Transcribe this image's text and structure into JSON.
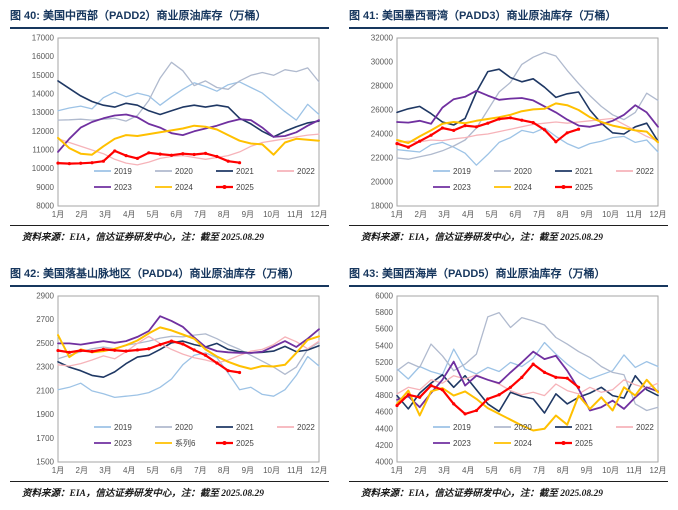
{
  "x_labels": [
    "1月",
    "2月",
    "3月",
    "4月",
    "5月",
    "6月",
    "7月",
    "8月",
    "9月",
    "10月",
    "11月",
    "12月"
  ],
  "palette": {
    "y2019": "#9DC3E6",
    "y2020": "#B0BACE",
    "y2021": "#1F3864",
    "y2022": "#F6B3B9",
    "y2023": "#7030A0",
    "y2024": "#FFC000",
    "y2025": "#FF0000",
    "title_navy": "#17375E",
    "axis_text": "#595959",
    "plot_border": "#A6A6A6"
  },
  "chart_data": [
    {
      "type": "line",
      "id": "padd2",
      "title": "图 40: 美国中西部（PADD2）商业原油库存（万桶）",
      "source": "资料来源：EIA，信达证券研发中心，注：截至 2025.08.29",
      "ylim": [
        8000,
        17000
      ],
      "ystep": 1000,
      "points_per_year": 24,
      "grid": false,
      "legend_position": "bottom-inside",
      "legend_rows": [
        [
          "2019",
          "2020",
          "2021",
          "2022"
        ],
        [
          "2023",
          "2024",
          "2025"
        ]
      ],
      "series": [
        {
          "name": "2019",
          "color": "#9DC3E6",
          "values": [
            13100,
            13250,
            13350,
            13200,
            13800,
            14100,
            13850,
            14050,
            13900,
            13400,
            13850,
            14250,
            14600,
            14400,
            14150,
            14500,
            14650,
            14350,
            14050,
            13550,
            13050,
            12600,
            13450,
            12900
          ]
        },
        {
          "name": "2020",
          "color": "#B0BACE",
          "values": [
            12600,
            12620,
            12650,
            12600,
            12650,
            12700,
            12550,
            12850,
            13650,
            14850,
            15700,
            15250,
            14450,
            14700,
            14350,
            14250,
            14700,
            15000,
            15150,
            15000,
            15300,
            15200,
            15400,
            14650
          ]
        },
        {
          "name": "2021",
          "color": "#1F3864",
          "values": [
            14700,
            14300,
            13900,
            13600,
            13400,
            13300,
            13500,
            13400,
            13100,
            12900,
            13100,
            13300,
            13400,
            13300,
            13400,
            13300,
            12700,
            12400,
            12000,
            11700,
            12000,
            12250,
            12450,
            12550
          ]
        },
        {
          "name": "2022",
          "color": "#F6B3B9",
          "values": [
            11600,
            11400,
            11200,
            11000,
            10800,
            10500,
            10300,
            10200,
            10350,
            10550,
            10650,
            10700,
            10600,
            10500,
            10600,
            10700,
            10900,
            11200,
            11400,
            11500,
            11600,
            11700,
            11800,
            11850
          ]
        },
        {
          "name": "2023",
          "color": "#7030A0",
          "values": [
            10900,
            11600,
            12200,
            12500,
            12700,
            12850,
            12900,
            12750,
            12400,
            12200,
            11900,
            11800,
            12000,
            12150,
            12300,
            12500,
            12650,
            12600,
            12200,
            11700,
            11750,
            11950,
            12300,
            12600
          ]
        },
        {
          "name": "2024",
          "color": "#FFC000",
          "values": [
            11650,
            11100,
            10800,
            10750,
            11200,
            11600,
            11800,
            11750,
            11850,
            11950,
            12050,
            12150,
            12300,
            12250,
            12100,
            11800,
            11500,
            11350,
            11300,
            10750,
            11400,
            11600,
            11550,
            11500
          ]
        },
        {
          "name": "2025",
          "color": "#FF0000",
          "marker": true,
          "values": [
            10300,
            10270,
            10290,
            10320,
            10400,
            10950,
            10700,
            10550,
            10850,
            10780,
            10720,
            10800,
            10760,
            10820,
            10650,
            10400,
            10320
          ]
        }
      ]
    },
    {
      "type": "line",
      "id": "padd3",
      "title": "图 41: 美国墨西哥湾（PADD3）商业原油库存（万桶）",
      "source": "资料来源：EIA，信达证券研发中心，注：截至 2025.08.29",
      "ylim": [
        18000,
        32000
      ],
      "ystep": 2000,
      "points_per_year": 24,
      "grid": false,
      "legend_position": "bottom-inside",
      "legend_rows": [
        [
          "2019",
          "2020",
          "2021",
          "2022"
        ],
        [
          "2023",
          "2024",
          "2025"
        ]
      ],
      "series": [
        {
          "name": "2019",
          "color": "#9DC3E6",
          "values": [
            22700,
            22600,
            22500,
            23100,
            23300,
            22900,
            22400,
            21400,
            22300,
            23300,
            23700,
            24300,
            24100,
            24500,
            23800,
            23200,
            22800,
            23200,
            23400,
            23700,
            23800,
            23300,
            23500,
            22500
          ]
        },
        {
          "name": "2020",
          "color": "#B0BACE",
          "values": [
            22000,
            21900,
            22100,
            22300,
            22600,
            23000,
            23500,
            24500,
            26000,
            27500,
            28300,
            29800,
            30400,
            30800,
            30500,
            29300,
            28200,
            27200,
            26300,
            25600,
            25200,
            25800,
            27400,
            26800
          ]
        },
        {
          "name": "2021",
          "color": "#1F3864",
          "values": [
            25800,
            26100,
            26300,
            25700,
            25000,
            24750,
            25300,
            27500,
            29200,
            29400,
            28700,
            28350,
            28600,
            27900,
            27050,
            27350,
            27500,
            26000,
            24900,
            24100,
            24000,
            24600,
            24900,
            23400
          ]
        },
        {
          "name": "2022",
          "color": "#F6B3B9",
          "values": [
            23300,
            23400,
            23350,
            23500,
            23450,
            23600,
            23700,
            23900,
            24000,
            24200,
            24400,
            24600,
            24800,
            24900,
            25000,
            24900,
            25000,
            25100,
            25200,
            25300,
            24800,
            24300,
            23800,
            23400
          ]
        },
        {
          "name": "2023",
          "color": "#7030A0",
          "values": [
            25000,
            24950,
            25100,
            24850,
            26200,
            26900,
            27100,
            27600,
            27200,
            26850,
            26950,
            27000,
            26800,
            26300,
            25800,
            25200,
            24700,
            24600,
            24800,
            25100,
            25600,
            26400,
            25800,
            24600
          ]
        },
        {
          "name": "2024",
          "color": "#FFC000",
          "values": [
            23500,
            23250,
            23800,
            24300,
            24850,
            25000,
            24900,
            25100,
            25250,
            25400,
            25600,
            25900,
            26050,
            26100,
            26550,
            26400,
            26000,
            25400,
            25000,
            24700,
            24500,
            24300,
            24200,
            23300
          ]
        },
        {
          "name": "2025",
          "color": "#FF0000",
          "marker": true,
          "values": [
            23200,
            22900,
            23400,
            23900,
            24500,
            24300,
            24700,
            24600,
            24900,
            25250,
            25350,
            25150,
            24950,
            24350,
            23350,
            24100,
            24400
          ]
        }
      ]
    },
    {
      "type": "line",
      "id": "padd4",
      "title": "图 42: 美国落基山脉地区（PADD4）商业原油库存（万桶）",
      "source": "资料来源：EIA，信达证券研发中心，注：截至 2025.08.29",
      "ylim": [
        1500,
        2900
      ],
      "ystep": 200,
      "points_per_year": 24,
      "grid": false,
      "legend_position": "bottom-inside",
      "legend_rows": [
        [
          "2019",
          "2020",
          "2021",
          "2022"
        ],
        [
          "2023",
          "系列6",
          "2025"
        ]
      ],
      "series": [
        {
          "name": "2019",
          "color": "#9DC3E6",
          "values": [
            2110,
            2130,
            2165,
            2100,
            2075,
            2045,
            2055,
            2065,
            2085,
            2130,
            2200,
            2320,
            2400,
            2420,
            2380,
            2250,
            2110,
            2130,
            2070,
            2055,
            2110,
            2230,
            2390,
            2310
          ]
        },
        {
          "name": "2020",
          "color": "#B0BACE",
          "values": [
            2370,
            2400,
            2430,
            2455,
            2470,
            2455,
            2485,
            2500,
            2520,
            2545,
            2560,
            2555,
            2570,
            2580,
            2540,
            2490,
            2450,
            2400,
            2350,
            2300,
            2240,
            2300,
            2450,
            2510
          ]
        },
        {
          "name": "2021",
          "color": "#1F3864",
          "values": [
            2345,
            2300,
            2270,
            2230,
            2215,
            2260,
            2330,
            2385,
            2400,
            2450,
            2505,
            2520,
            2490,
            2470,
            2500,
            2450,
            2430,
            2420,
            2425,
            2435,
            2475,
            2430,
            2445,
            2480
          ]
        },
        {
          "name": "2022",
          "color": "#F6B3B9",
          "values": [
            2320,
            2310,
            2330,
            2360,
            2395,
            2370,
            2430,
            2500,
            2560,
            2500,
            2450,
            2410,
            2380,
            2360,
            2335,
            2360,
            2400,
            2435,
            2450,
            2490,
            2555,
            2515,
            2455,
            2520
          ]
        },
        {
          "name": "2023",
          "color": "#7030A0",
          "values": [
            2500,
            2500,
            2490,
            2505,
            2520,
            2505,
            2520,
            2555,
            2605,
            2730,
            2690,
            2640,
            2550,
            2470,
            2435,
            2425,
            2420,
            2420,
            2430,
            2475,
            2520,
            2470,
            2540,
            2620
          ]
        },
        {
          "name": "系列6",
          "color": "#FFC000",
          "values": [
            2570,
            2385,
            2450,
            2425,
            2435,
            2455,
            2485,
            2525,
            2585,
            2635,
            2610,
            2575,
            2540,
            2450,
            2390,
            2345,
            2310,
            2285,
            2310,
            2305,
            2320,
            2420,
            2530,
            2560
          ]
        },
        {
          "name": "2025",
          "color": "#FF0000",
          "marker": true,
          "values": [
            2440,
            2425,
            2440,
            2432,
            2450,
            2442,
            2435,
            2445,
            2455,
            2490,
            2520,
            2495,
            2445,
            2400,
            2335,
            2270,
            2255
          ]
        }
      ]
    },
    {
      "type": "line",
      "id": "padd5",
      "title": "图 43: 美国西海岸（PADD5）商业原油库存（万桶）",
      "source": "资料来源：EIA，信达证券研发中心，注：截至 2025.08.29",
      "ylim": [
        4000,
        6000
      ],
      "ystep": 200,
      "points_per_year": 24,
      "grid": false,
      "legend_position": "bottom-inside",
      "legend_rows": [
        [
          "2019",
          "2020",
          "2021",
          "2022"
        ],
        [
          "2023",
          "2024",
          "2025"
        ]
      ],
      "series": [
        {
          "name": "2019",
          "color": "#9DC3E6",
          "values": [
            5120,
            5000,
            5150,
            5090,
            5050,
            5360,
            5120,
            5060,
            5140,
            5090,
            5200,
            5150,
            5250,
            5440,
            5300,
            5180,
            5080,
            5000,
            5050,
            5100,
            5290,
            5140,
            5210,
            5150
          ]
        },
        {
          "name": "2020",
          "color": "#B0BACE",
          "values": [
            5100,
            5200,
            5140,
            5420,
            5280,
            5100,
            5180,
            5300,
            5750,
            5800,
            5620,
            5740,
            5700,
            5650,
            5500,
            5420,
            5330,
            5260,
            5150,
            5080,
            5050,
            4700,
            4620,
            4660
          ]
        },
        {
          "name": "2021",
          "color": "#1F3864",
          "values": [
            4800,
            4640,
            4830,
            4950,
            5050,
            4900,
            5040,
            4870,
            4700,
            4610,
            4840,
            4790,
            4760,
            4590,
            4820,
            4700,
            4780,
            4830,
            4900,
            4800,
            4770,
            5040,
            4870,
            4800
          ]
        },
        {
          "name": "2022",
          "color": "#F6B3B9",
          "values": [
            4820,
            4900,
            4870,
            4990,
            4950,
            5040,
            5000,
            5050,
            4990,
            4940,
            4860,
            4810,
            4840,
            4800,
            4940,
            4860,
            4820,
            4900,
            4840,
            4870,
            4990,
            4930,
            4890,
            4950
          ]
        },
        {
          "name": "2023",
          "color": "#7030A0",
          "values": [
            4750,
            4790,
            4660,
            4830,
            4990,
            5210,
            4920,
            5040,
            4990,
            4950,
            5080,
            5200,
            5330,
            5240,
            5280,
            5100,
            4880,
            4620,
            4660,
            4740,
            4640,
            4780,
            4900,
            4850
          ]
        },
        {
          "name": "2024",
          "color": "#FFC000",
          "values": [
            4700,
            4860,
            4560,
            4850,
            4890,
            4800,
            4850,
            4760,
            4650,
            4580,
            4510,
            4440,
            4380,
            4400,
            4560,
            4450,
            4800,
            4640,
            4780,
            4620,
            4900,
            4800,
            4990,
            4840
          ]
        },
        {
          "name": "2025",
          "color": "#FF0000",
          "marker": true,
          "values": [
            4680,
            4810,
            4780,
            4920,
            4870,
            4700,
            4580,
            4620,
            4760,
            4810,
            4900,
            5020,
            5180,
            5080,
            5020,
            5010,
            4900
          ]
        }
      ]
    }
  ]
}
